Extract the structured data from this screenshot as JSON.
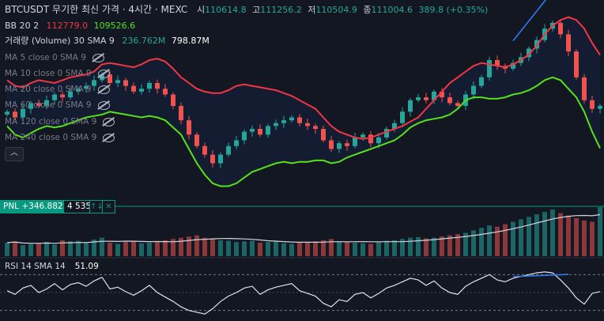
{
  "header": {
    "symbol": "BTCUSDT 무기한 최신 가격 · 4시간 · MEXC",
    "open_label": "시",
    "open": "110614.8",
    "high_label": "고",
    "high": "111256.2",
    "low_label": "저",
    "low": "110504.9",
    "close_label": "종",
    "close": "111004.6",
    "change": "389.8 (+0.35%)"
  },
  "bb": {
    "label": "BB 20 2",
    "upper": "112779.0",
    "lower": "109526.6"
  },
  "volume": {
    "label": "거래량 (Volume) 30 SMA 9",
    "sma": "236.762M",
    "value": "798.87M"
  },
  "ma_rows": [
    "MA 5 close 0 SMA 9",
    "MA 10 close 0 SMA 9",
    "MA 20 close 0 SMA 9",
    "MA 60 close 0 SMA 9",
    "MA 120 close 0 SMA 9",
    "MA 240 close 0 SMA 9"
  ],
  "collapse_icon": "chevron-up-icon",
  "pnl": {
    "label": "PNL +346.8821",
    "qty": "4 535",
    "btn1": "↑↓",
    "btn2": "✕"
  },
  "rsi": {
    "label": "RSI 14 SMA 14",
    "value": "51.09"
  },
  "colors": {
    "background": "#131722",
    "bull": "#26a69a",
    "bear": "#ef5350",
    "bb_upper": "#f23645",
    "bb_lower": "#57e01c",
    "pnl": "#089981",
    "trendline": "#3179f5"
  },
  "chart_data": [
    {
      "type": "candlestick",
      "series": [
        {
          "name": "BB 20 2 upper",
          "values": [
            111900,
            111700,
            111650,
            111800,
            111900,
            111850,
            111800,
            111900,
            112000,
            112050,
            112100,
            112200,
            112450,
            112500,
            112450,
            112400,
            112350,
            112450,
            112600,
            112650,
            112550,
            112300,
            112000,
            111800,
            111600,
            111500,
            111450,
            111450,
            111550,
            111700,
            111750,
            111700,
            111650,
            111600,
            111550,
            111450,
            111350,
            111200,
            111050,
            110900,
            110600,
            110300,
            110100,
            110000,
            109900,
            109850,
            109900,
            110000,
            110100,
            110200,
            110300,
            110450,
            110600,
            110900,
            111200,
            111500,
            111800,
            112000,
            112200,
            112400,
            112500,
            112450,
            112400,
            112350,
            112450,
            112600,
            112800,
            113100,
            113500,
            113800,
            114000,
            114100,
            114000,
            113700,
            113200,
            112779
          ]
        },
        {
          "name": "BB 20 2 lower",
          "values": [
            110300,
            110000,
            109900,
            110050,
            110200,
            110300,
            110250,
            110300,
            110400,
            110500,
            110600,
            110650,
            110700,
            110800,
            110750,
            110700,
            110650,
            110600,
            110650,
            110600,
            110500,
            110250,
            110000,
            109500,
            109000,
            108600,
            108300,
            108200,
            108200,
            108300,
            108500,
            108700,
            108800,
            108900,
            109000,
            109050,
            109000,
            109050,
            109050,
            109100,
            109100,
            109000,
            109050,
            109200,
            109300,
            109400,
            109500,
            109600,
            109700,
            109800,
            110000,
            110250,
            110400,
            110500,
            110550,
            110600,
            110700,
            110900,
            111200,
            111300,
            111300,
            111250,
            111250,
            111300,
            111400,
            111450,
            111550,
            111700,
            111900,
            112000,
            111900,
            111600,
            111300,
            110800,
            110100,
            109526
          ]
        },
        {
          "name": "OHLC close",
          "values": [
            110800,
            110600,
            110900,
            111100,
            111000,
            111200,
            111400,
            111300,
            111500,
            111600,
            111700,
            111900,
            112100,
            111800,
            111900,
            111700,
            111500,
            111600,
            111800,
            111600,
            111400,
            111000,
            110500,
            110000,
            109600,
            109300,
            109000,
            109300,
            109600,
            109800,
            110100,
            110200,
            110000,
            110300,
            110400,
            110500,
            110600,
            110400,
            110300,
            110200,
            109800,
            109500,
            109700,
            109600,
            109900,
            110000,
            109700,
            109900,
            110200,
            110400,
            110800,
            111200,
            111300,
            111200,
            111500,
            111300,
            111100,
            111000,
            111400,
            111700,
            112000,
            112600,
            112400,
            112300,
            112500,
            112700,
            113000,
            113300,
            113700,
            113900,
            113500,
            112900,
            112000,
            111200,
            110900,
            111004
          ]
        }
      ],
      "title": "",
      "xlabel": "",
      "ylabel": "",
      "ylim": [
        107800,
        114200
      ],
      "legend": "top-left",
      "grid": false
    },
    {
      "type": "bar",
      "series": [
        {
          "name": "거래량 (Volume)",
          "values": [
            220,
            240,
            180,
            200,
            210,
            230,
            190,
            260,
            240,
            250,
            230,
            270,
            300,
            220,
            200,
            230,
            250,
            210,
            220,
            240,
            260,
            280,
            300,
            320,
            340,
            300,
            280,
            260,
            250,
            230,
            240,
            250,
            220,
            230,
            240,
            210,
            200,
            220,
            230,
            240,
            260,
            280,
            240,
            230,
            220,
            210,
            200,
            230,
            250,
            260,
            280,
            300,
            310,
            290,
            300,
            320,
            340,
            360,
            380,
            420,
            460,
            500,
            480,
            520,
            560,
            600,
            640,
            680,
            720,
            760,
            700,
            660,
            620,
            580,
            560,
            798
          ]
        }
      ]
    },
    {
      "type": "line",
      "series": [
        {
          "name": "RSI 14",
          "values": [
            52,
            48,
            55,
            58,
            50,
            54,
            60,
            53,
            59,
            61,
            57,
            63,
            67,
            54,
            56,
            51,
            47,
            52,
            58,
            50,
            45,
            40,
            34,
            30,
            28,
            26,
            32,
            40,
            46,
            50,
            55,
            57,
            48,
            53,
            56,
            58,
            60,
            52,
            49,
            46,
            38,
            34,
            42,
            40,
            48,
            50,
            44,
            49,
            55,
            58,
            62,
            66,
            64,
            58,
            63,
            55,
            50,
            48,
            57,
            62,
            66,
            70,
            64,
            62,
            66,
            68,
            70,
            72,
            73,
            72,
            64,
            55,
            44,
            37,
            49,
            51.09
          ]
        }
      ]
    }
  ]
}
